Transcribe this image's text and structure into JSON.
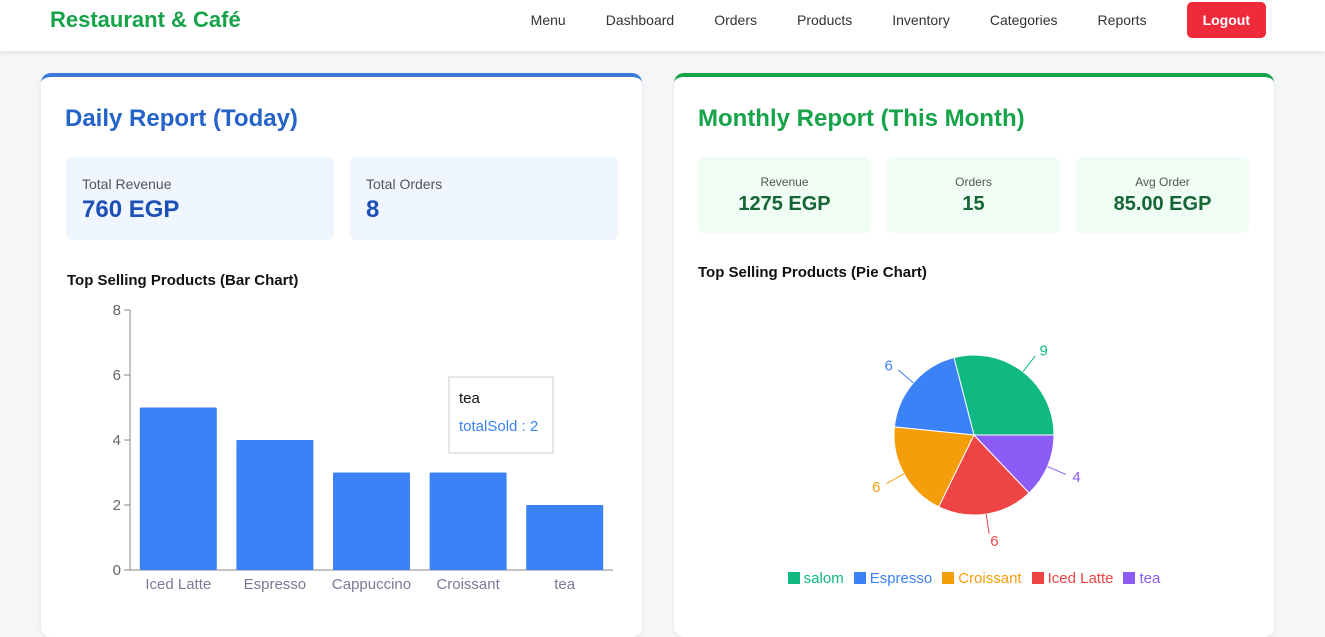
{
  "nav": {
    "brand": "Restaurant & Café",
    "links": [
      "Menu",
      "Dashboard",
      "Orders",
      "Products",
      "Inventory",
      "Categories",
      "Reports"
    ],
    "logout": "Logout"
  },
  "daily": {
    "title": "Daily Report (Today)",
    "stats": [
      {
        "label": "Total Revenue",
        "value": "760 EGP"
      },
      {
        "label": "Total Orders",
        "value": "8"
      }
    ]
  },
  "monthly": {
    "title": "Monthly Report (This Month)",
    "stats": [
      {
        "label": "Revenue",
        "value": "1275 EGP"
      },
      {
        "label": "Orders",
        "value": "15"
      },
      {
        "label": "Avg Order",
        "value": "85.00 EGP"
      }
    ]
  },
  "chart_data": [
    {
      "type": "bar",
      "title": "Top Selling Products (Bar Chart)",
      "categories": [
        "Iced Latte",
        "Espresso",
        "Cappuccino",
        "Croissant",
        "tea"
      ],
      "values": [
        5,
        4,
        3,
        3,
        2
      ],
      "color": "#3b82f6",
      "ylim": [
        0,
        8
      ],
      "yticks": [
        0,
        2,
        4,
        6,
        8
      ],
      "tooltip": {
        "title": "tea",
        "text": "totalSold : 2"
      }
    },
    {
      "type": "pie",
      "title": "Top Selling Products (Pie Chart)",
      "categories": [
        "salom",
        "Espresso",
        "Croissant",
        "Iced Latte",
        "tea"
      ],
      "values": [
        9,
        6,
        6,
        6,
        4
      ],
      "colors": [
        "#10b981",
        "#3b82f6",
        "#f59e0b",
        "#ef4444",
        "#8b5cf6"
      ]
    }
  ]
}
